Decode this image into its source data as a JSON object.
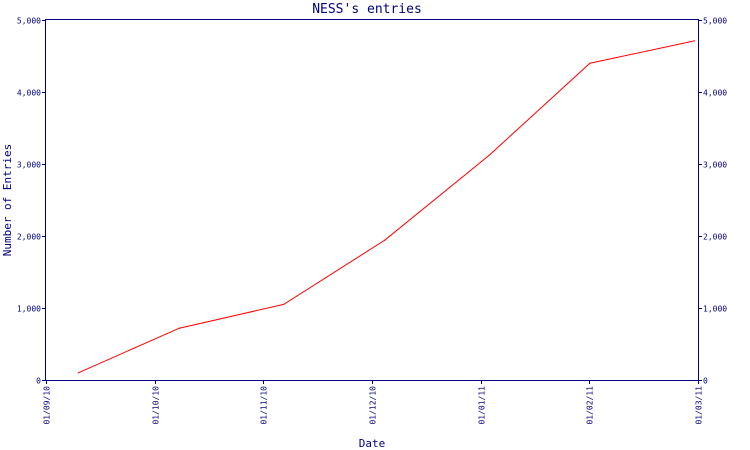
{
  "chart_data": {
    "type": "line",
    "title": "NESS's entries",
    "xlabel": "Date",
    "ylabel": "Number of Entries",
    "x_ticks": [
      "01/09/10",
      "01/10/10",
      "01/11/10",
      "01/12/10",
      "01/01/11",
      "01/02/11",
      "01/03/11"
    ],
    "y_ticks_left": [
      "0",
      "1,000",
      "2,000",
      "3,000",
      "4,000",
      "5,000"
    ],
    "y_ticks_right": [
      "0",
      "1,000",
      "2,000",
      "3,000",
      "4,000",
      "5,000"
    ],
    "ylim": [
      0,
      5000
    ],
    "xlim": [
      "2010-09-01",
      "2011-03-01"
    ],
    "grid": false,
    "series": [
      {
        "color": "#ff0000",
        "points": [
          {
            "x": "2010-09-10",
            "y": 100
          },
          {
            "x": "2010-10-08",
            "y": 720
          },
          {
            "x": "2010-11-06",
            "y": 1050
          },
          {
            "x": "2010-12-04",
            "y": 1940
          },
          {
            "x": "2011-01-02",
            "y": 3120
          },
          {
            "x": "2011-01-30",
            "y": 4400
          },
          {
            "x": "2011-02-28",
            "y": 4710
          }
        ]
      }
    ],
    "colors": {
      "axis": "#000080",
      "background": "#ffffff"
    }
  }
}
